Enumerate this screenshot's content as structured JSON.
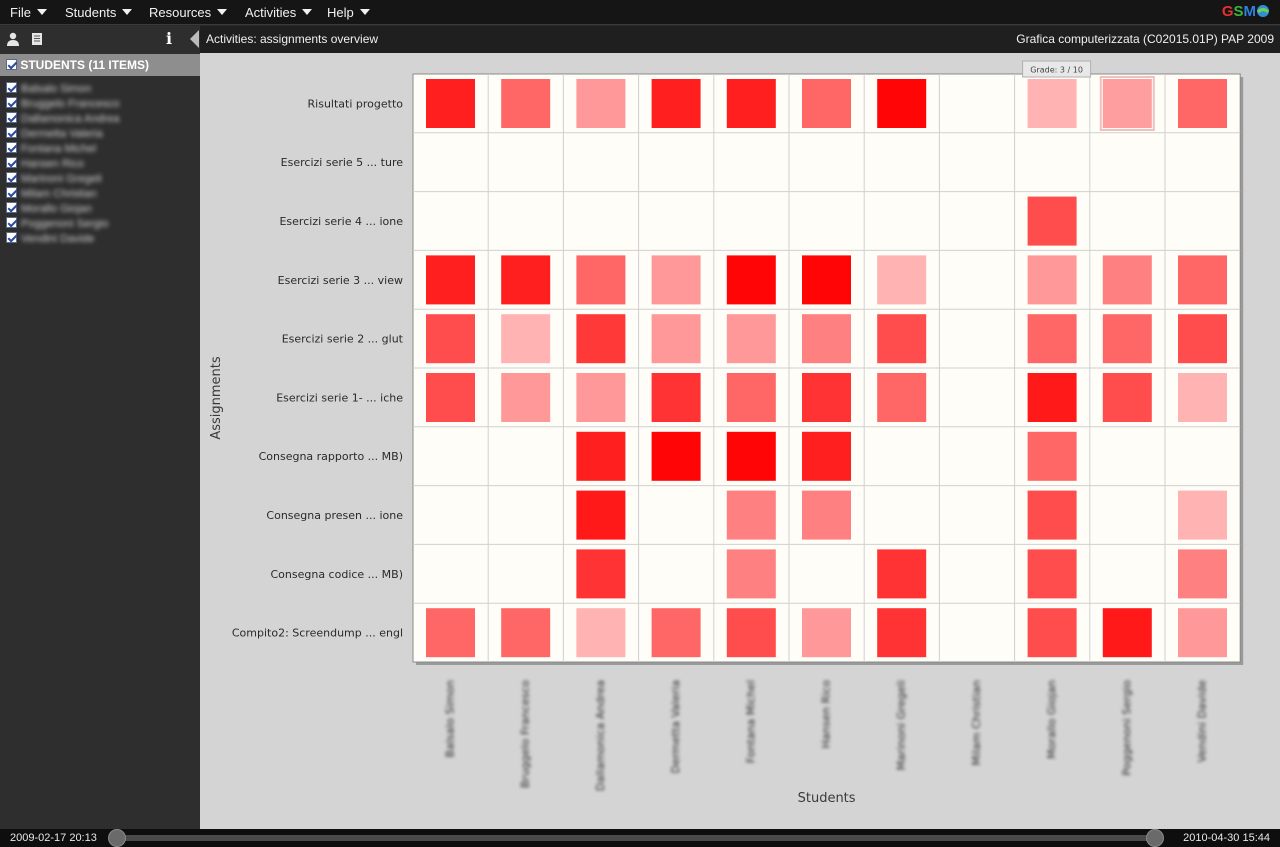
{
  "menu": [
    {
      "label": "File"
    },
    {
      "label": "Students"
    },
    {
      "label": "Resources"
    },
    {
      "label": "Activities"
    },
    {
      "label": "Help"
    }
  ],
  "logo": {
    "g": "G",
    "s": "S",
    "m": "M",
    "o": "O"
  },
  "sidebar": {
    "tools": [
      "person-icon",
      "document-icon",
      "info-icon"
    ],
    "info_glyph": "i",
    "list_title": "STUDENTS (11 ITEMS)",
    "students": [
      "Balsalo Simon",
      "Bruggelo Francesco",
      "Dallamonica Andrea",
      "Dermetta Valeria",
      "Fontana Michel",
      "Hansen Rico",
      "Marinoni Gregeli",
      "Milam Christian",
      "Morallo Giojan",
      "Poggenoni Sergio",
      "Vendini Davide"
    ]
  },
  "header": {
    "title": "Activities: assignments overview",
    "course": "Grafica computerizzata (C02015.01P) PAP 2009"
  },
  "tooltip": {
    "text": "Grade: 3 / 10"
  },
  "chart_data": {
    "type": "heatmap",
    "xlabel": "Students",
    "ylabel": "Assignments",
    "rows": [
      "Risultati progetto",
      "Esercizi serie 5 ... ture",
      "Esercizi serie 4 ... ione",
      "Esercizi serie 3 ... view",
      "Esercizi serie 2 ... glut",
      "Esercizi serie 1- ... iche",
      "Consegna rapporto ...  MB)",
      "Consegna presen ... ione",
      "Consegna codice ...  MB)",
      "Compito2: Screendump ... engl"
    ],
    "columns": [
      "Balsalo Simon",
      "Bruggelo Francesco",
      "Dallamonica Andrea",
      "Dermetta Valeria",
      "Fontana Michel",
      "Hansen Rico",
      "Marinoni Gregeli",
      "Milam Christian",
      "Morallo Giojan",
      "Poggenoni Sergio",
      "Vendini Davide"
    ],
    "value_scale": [
      0,
      1
    ],
    "color": "#ff0000",
    "values": [
      [
        0.88,
        0.6,
        0.4,
        0.88,
        0.88,
        0.6,
        0.98,
        null,
        0.3,
        0.38,
        0.6
      ],
      [
        null,
        null,
        null,
        null,
        null,
        null,
        null,
        null,
        null,
        null,
        null
      ],
      [
        null,
        null,
        null,
        null,
        null,
        null,
        null,
        null,
        0.7,
        null,
        null
      ],
      [
        0.88,
        0.88,
        0.6,
        0.4,
        0.98,
        0.98,
        0.3,
        null,
        0.4,
        0.5,
        0.6
      ],
      [
        0.7,
        0.3,
        0.78,
        0.4,
        0.4,
        0.5,
        0.7,
        null,
        0.6,
        0.6,
        0.7
      ],
      [
        0.7,
        0.4,
        0.4,
        0.8,
        0.6,
        0.8,
        0.6,
        null,
        0.9,
        0.7,
        0.3
      ],
      [
        null,
        null,
        0.88,
        0.98,
        0.98,
        0.88,
        null,
        null,
        0.6,
        null,
        null
      ],
      [
        null,
        null,
        0.9,
        null,
        0.5,
        0.5,
        null,
        null,
        0.7,
        null,
        0.3
      ],
      [
        null,
        null,
        0.8,
        null,
        0.5,
        null,
        0.8,
        null,
        0.7,
        null,
        0.5
      ],
      [
        0.6,
        0.6,
        0.3,
        0.6,
        0.7,
        0.4,
        0.8,
        null,
        0.7,
        0.9,
        0.4
      ]
    ]
  },
  "timeline": {
    "start": "2009-02-17 20:13",
    "end": "2010-04-30 15:44"
  }
}
